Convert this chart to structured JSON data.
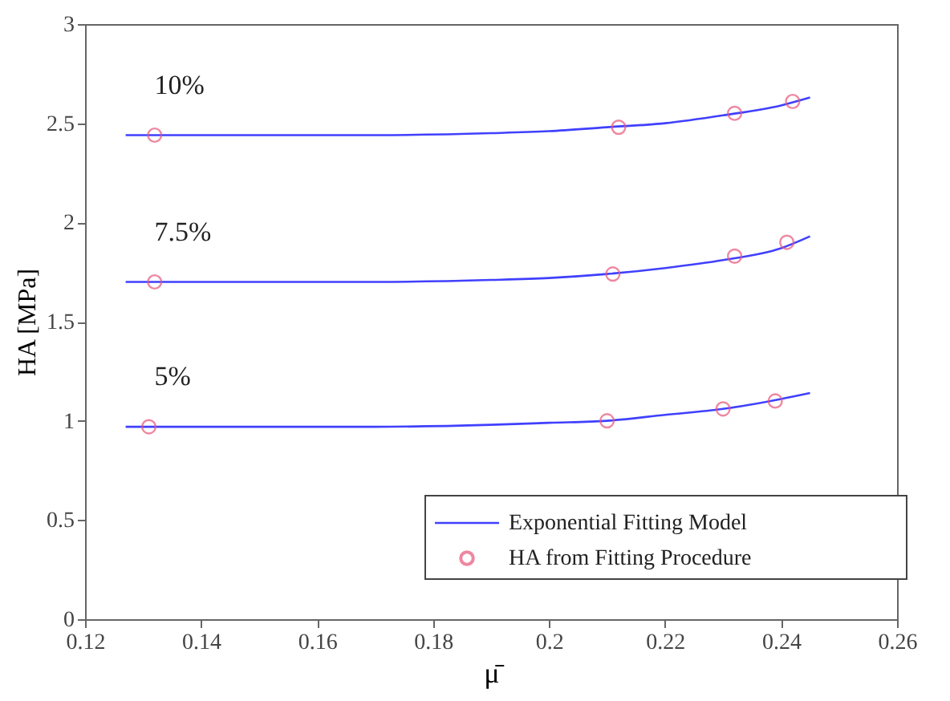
{
  "chart_data": {
    "type": "line",
    "xlabel": "μ̄",
    "ylabel": "HA [MPa]",
    "xlim": [
      0.12,
      0.26
    ],
    "xticks": [
      0.12,
      0.14,
      0.16,
      0.18,
      0.2,
      0.22,
      0.24,
      0.26
    ],
    "ylim": [
      0,
      3
    ],
    "yticks": [
      0,
      0.5,
      1,
      1.5,
      2,
      2.5,
      3
    ],
    "grid": false,
    "legend": "bottom right",
    "line_style": "solid",
    "series": [
      {
        "name": "Exponential Fitting Model",
        "color": "#4040ff",
        "x": [
          0.127,
          0.15,
          0.17,
          0.19,
          0.2,
          0.21,
          0.22,
          0.23,
          0.24,
          0.245
        ],
        "values": [
          2.44,
          2.44,
          2.44,
          2.45,
          2.46,
          2.48,
          2.5,
          2.54,
          2.59,
          2.63
        ]
      },
      {
        "color": "#4040ff",
        "x": [
          0.127,
          0.15,
          0.17,
          0.19,
          0.2,
          0.21,
          0.22,
          0.23,
          0.24,
          0.245
        ],
        "values": [
          1.7,
          1.7,
          1.7,
          1.71,
          1.72,
          1.74,
          1.77,
          1.81,
          1.87,
          1.93
        ]
      },
      {
        "color": "#4040ff",
        "x": [
          0.127,
          0.15,
          0.17,
          0.19,
          0.2,
          0.21,
          0.22,
          0.23,
          0.24,
          0.245
        ],
        "values": [
          0.97,
          0.97,
          0.97,
          0.98,
          0.99,
          1.0,
          1.03,
          1.06,
          1.11,
          1.14
        ]
      },
      {
        "name": "HA from Fitting Procedure",
        "type": "scatter",
        "color": "#e8557a",
        "marker": "circle",
        "x": [
          0.132,
          0.212,
          0.232,
          0.242
        ],
        "values": [
          2.44,
          2.48,
          2.55,
          2.61
        ]
      },
      {
        "type": "scatter",
        "color": "#e8557a",
        "marker": "circle",
        "x": [
          0.132,
          0.211,
          0.232,
          0.241
        ],
        "values": [
          1.7,
          1.74,
          1.83,
          1.9
        ]
      },
      {
        "type": "scatter",
        "color": "#e8557a",
        "marker": "circle",
        "x": [
          0.131,
          0.21,
          0.23,
          0.239
        ],
        "values": [
          0.97,
          1.0,
          1.06,
          1.1
        ]
      }
    ],
    "annotations": [
      "10%",
      "7.5%",
      "5%"
    ]
  }
}
